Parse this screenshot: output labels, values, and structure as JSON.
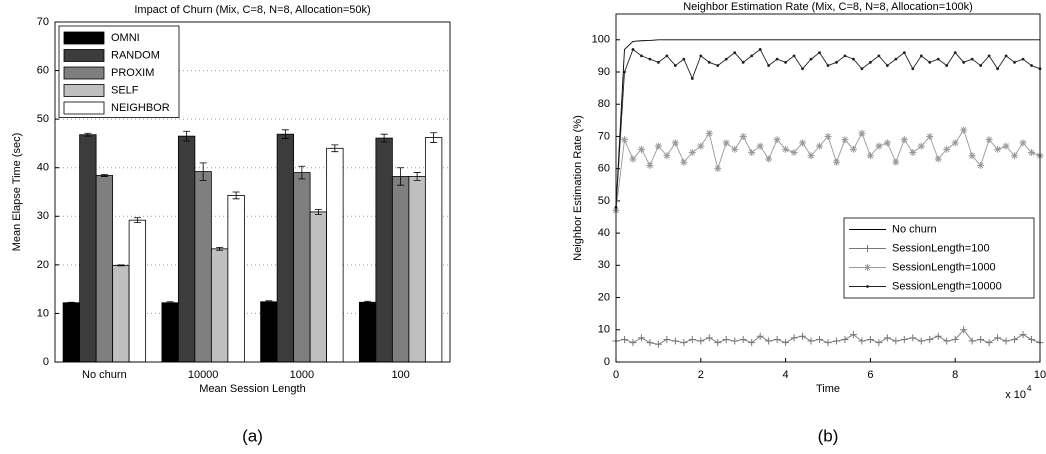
{
  "chart_data": [
    {
      "type": "bar",
      "title": "Impact of Churn (Mix, C=8, N=8, Allocation=50k)",
      "caption": "(a)",
      "xlabel": "Mean Session Length",
      "ylabel": "Mean Elapse Time (sec)",
      "categories": [
        "No churn",
        "10000",
        "1000",
        "100"
      ],
      "series": [
        {
          "name": "OMNI",
          "color": "#000000",
          "values": [
            12.2,
            12.2,
            12.4,
            12.3
          ],
          "errors": [
            0.1,
            0.2,
            0.2,
            0.2
          ]
        },
        {
          "name": "RANDOM",
          "color": "#3c3c3c",
          "values": [
            46.8,
            46.5,
            46.9,
            46.1
          ],
          "errors": [
            0.3,
            1.0,
            0.9,
            0.8
          ]
        },
        {
          "name": "PROXIM",
          "color": "#7f7f7f",
          "values": [
            38.4,
            39.2,
            39.0,
            38.2
          ],
          "errors": [
            0.2,
            1.8,
            1.3,
            1.8
          ]
        },
        {
          "name": "SELF",
          "color": "#bfbfbf",
          "values": [
            19.9,
            23.3,
            30.9,
            38.2
          ],
          "errors": [
            0.1,
            0.3,
            0.5,
            0.8
          ]
        },
        {
          "name": "NEIGHBOR",
          "color": "#ffffff",
          "values": [
            29.2,
            34.3,
            44.0,
            46.2
          ],
          "errors": [
            0.5,
            0.7,
            0.7,
            1.0
          ]
        }
      ],
      "ylim": [
        0,
        70
      ],
      "yticks": [
        0,
        10,
        20,
        30,
        40,
        50,
        60,
        70
      ],
      "grid": true,
      "legend": "upper left"
    },
    {
      "type": "line",
      "title": "Neighbor Estimation Rate (Mix, C=8, N=8, Allocation=100k)",
      "caption": "(b)",
      "xlabel": "Time",
      "ylabel": "Neighbor Estimation Rate (%)",
      "x_multiplier": {
        "base": "x 10",
        "exponent": "4"
      },
      "x": [
        0,
        2000,
        4000,
        6000,
        8000,
        10000,
        12000,
        14000,
        16000,
        18000,
        20000,
        22000,
        24000,
        26000,
        28000,
        30000,
        32000,
        34000,
        36000,
        38000,
        40000,
        42000,
        44000,
        46000,
        48000,
        50000,
        52000,
        54000,
        56000,
        58000,
        60000,
        62000,
        64000,
        66000,
        68000,
        70000,
        72000,
        74000,
        76000,
        78000,
        80000,
        82000,
        84000,
        86000,
        88000,
        90000,
        92000,
        94000,
        96000,
        98000,
        100000
      ],
      "series": [
        {
          "name": "No churn",
          "color": "#000000",
          "marker": "none",
          "values": [
            48,
            97,
            99.5,
            99.7,
            99.8,
            100,
            100,
            100,
            100,
            100,
            100,
            100,
            100,
            100,
            100,
            100,
            100,
            100,
            100,
            100,
            100,
            100,
            100,
            100,
            100,
            100,
            100,
            100,
            100,
            100,
            100,
            100,
            100,
            100,
            100,
            100,
            100,
            100,
            100,
            100,
            100,
            100,
            100,
            100,
            100,
            100,
            100,
            100,
            100,
            100,
            100
          ]
        },
        {
          "name": "SessionLength=100",
          "color": "#777777",
          "marker": "plus",
          "values": [
            6.5,
            7,
            6,
            7.5,
            6,
            5.5,
            7,
            6.5,
            6,
            7,
            6.5,
            7.5,
            6,
            7,
            6.5,
            7,
            6,
            8,
            6.5,
            7,
            6,
            7.5,
            8,
            6.5,
            7,
            6,
            6.5,
            7,
            8.5,
            6.5,
            7,
            6,
            7.5,
            6.5,
            7,
            7.5,
            6.5,
            7,
            8,
            6.5,
            7,
            10,
            6.5,
            7,
            6,
            7.5,
            6.5,
            7,
            8.5,
            7,
            6
          ]
        },
        {
          "name": "SessionLength=1000",
          "color": "#999999",
          "marker": "star",
          "values": [
            47,
            69,
            63,
            66,
            61,
            67,
            64,
            68,
            62,
            65,
            67,
            71,
            60,
            68,
            66,
            70,
            65,
            67,
            63,
            69,
            66,
            65,
            68,
            64,
            67,
            70,
            62,
            69,
            66,
            71,
            64,
            67,
            68,
            62,
            69,
            65,
            67,
            70,
            63,
            66,
            68,
            72,
            64,
            61,
            69,
            66,
            67,
            64,
            68,
            65,
            64
          ]
        },
        {
          "name": "SessionLength=10000",
          "color": "#222222",
          "marker": "dot",
          "values": [
            48,
            90,
            97,
            95,
            94,
            93,
            95,
            92,
            94,
            88,
            95,
            93,
            92,
            94,
            96,
            93,
            95,
            97,
            92,
            94,
            93,
            95,
            91,
            94,
            96,
            92,
            93,
            95,
            94,
            91,
            93,
            95,
            92,
            94,
            96,
            91,
            95,
            93,
            94,
            92,
            96,
            93,
            94,
            92,
            95,
            91,
            95,
            93,
            94,
            92,
            91
          ]
        }
      ],
      "xlim": [
        0,
        100000
      ],
      "xticks": [
        0,
        {
          "value": 20000,
          "label": "2"
        },
        {
          "value": 40000,
          "label": "4"
        },
        {
          "value": 60000,
          "label": "6"
        },
        {
          "value": 80000,
          "label": "8"
        },
        {
          "value": 100000,
          "label": "10"
        }
      ],
      "ylim": [
        0,
        108
      ],
      "yticks": [
        0,
        10,
        20,
        30,
        40,
        50,
        60,
        70,
        80,
        90,
        100
      ],
      "grid": false,
      "legend": "right"
    }
  ]
}
